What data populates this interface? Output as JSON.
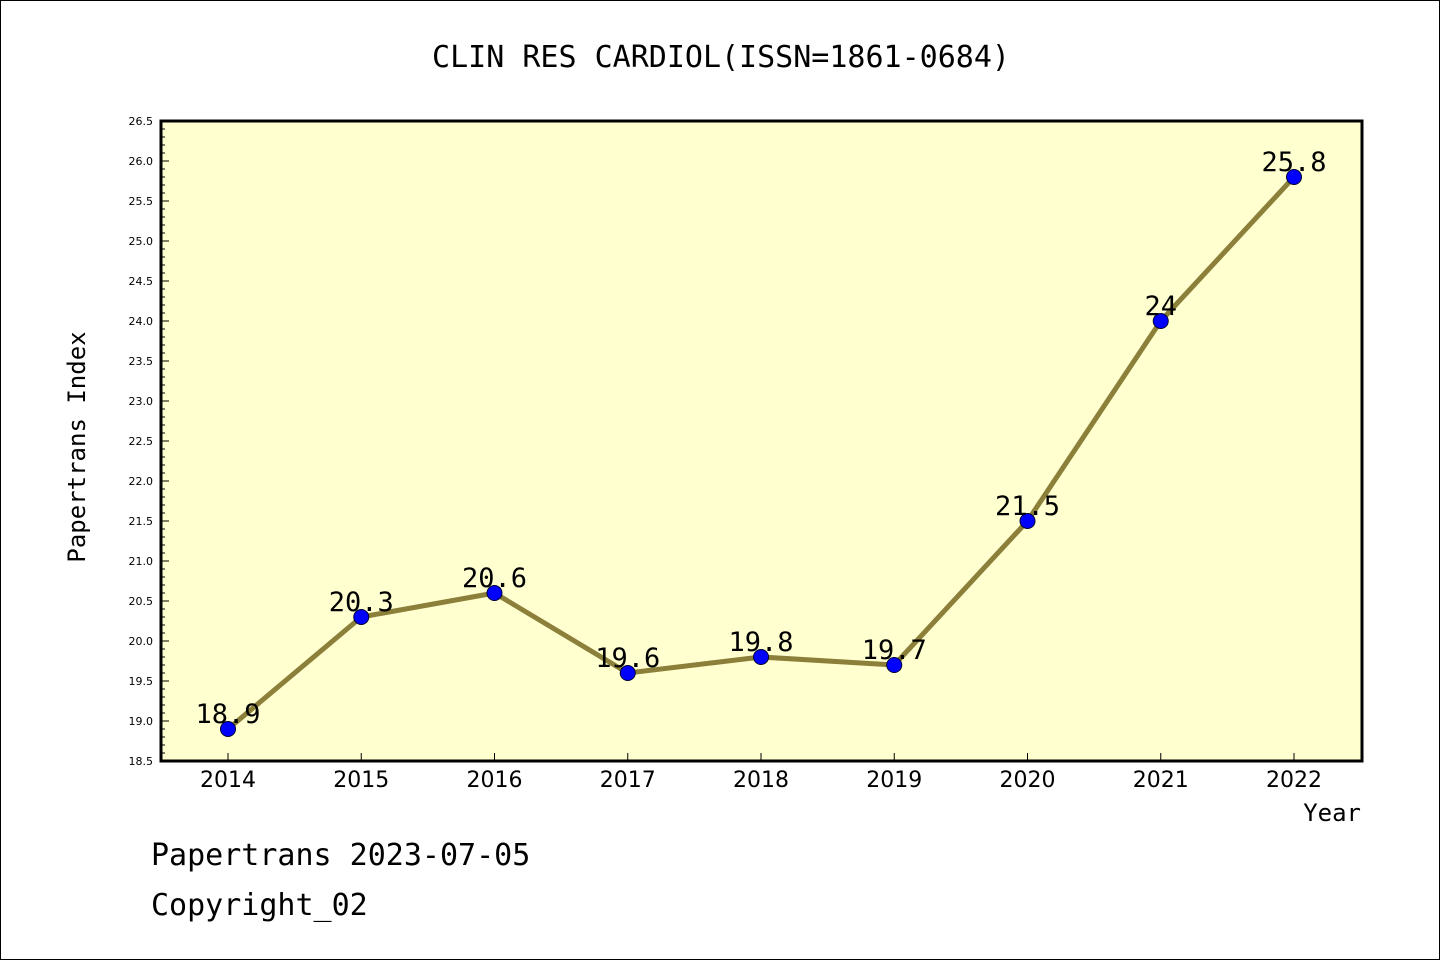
{
  "chart_data": {
    "type": "line",
    "title": "CLIN RES CARDIOL(ISSN=1861-0684)",
    "xlabel": "Year",
    "ylabel": "Papertrans Index",
    "x": [
      "2014",
      "2015",
      "2016",
      "2017",
      "2018",
      "2019",
      "2020",
      "2021",
      "2022"
    ],
    "values": [
      18.9,
      20.3,
      20.6,
      19.6,
      19.8,
      19.7,
      21.5,
      24,
      25.8
    ],
    "data_labels": [
      "18.9",
      "20.3",
      "20.6",
      "19.6",
      "19.8",
      "19.7",
      "21.5",
      "24",
      "25.8"
    ],
    "ylim": [
      18.5,
      26.5
    ],
    "yticks": [
      "18.5",
      "19.0",
      "19.5",
      "20.0",
      "20.5",
      "21.0",
      "21.5",
      "22.0",
      "22.5",
      "23.0",
      "23.5",
      "24.0",
      "24.5",
      "25.0",
      "25.5",
      "26.0",
      "26.5"
    ],
    "grid": false,
    "legend": "none",
    "colors": {
      "plot_background": "#ffffd0",
      "line": "#8b7f3a",
      "marker": "#0000ff"
    }
  },
  "footer": {
    "source": "Papertrans 2023-07-05",
    "copyright": "Copyright_02"
  }
}
